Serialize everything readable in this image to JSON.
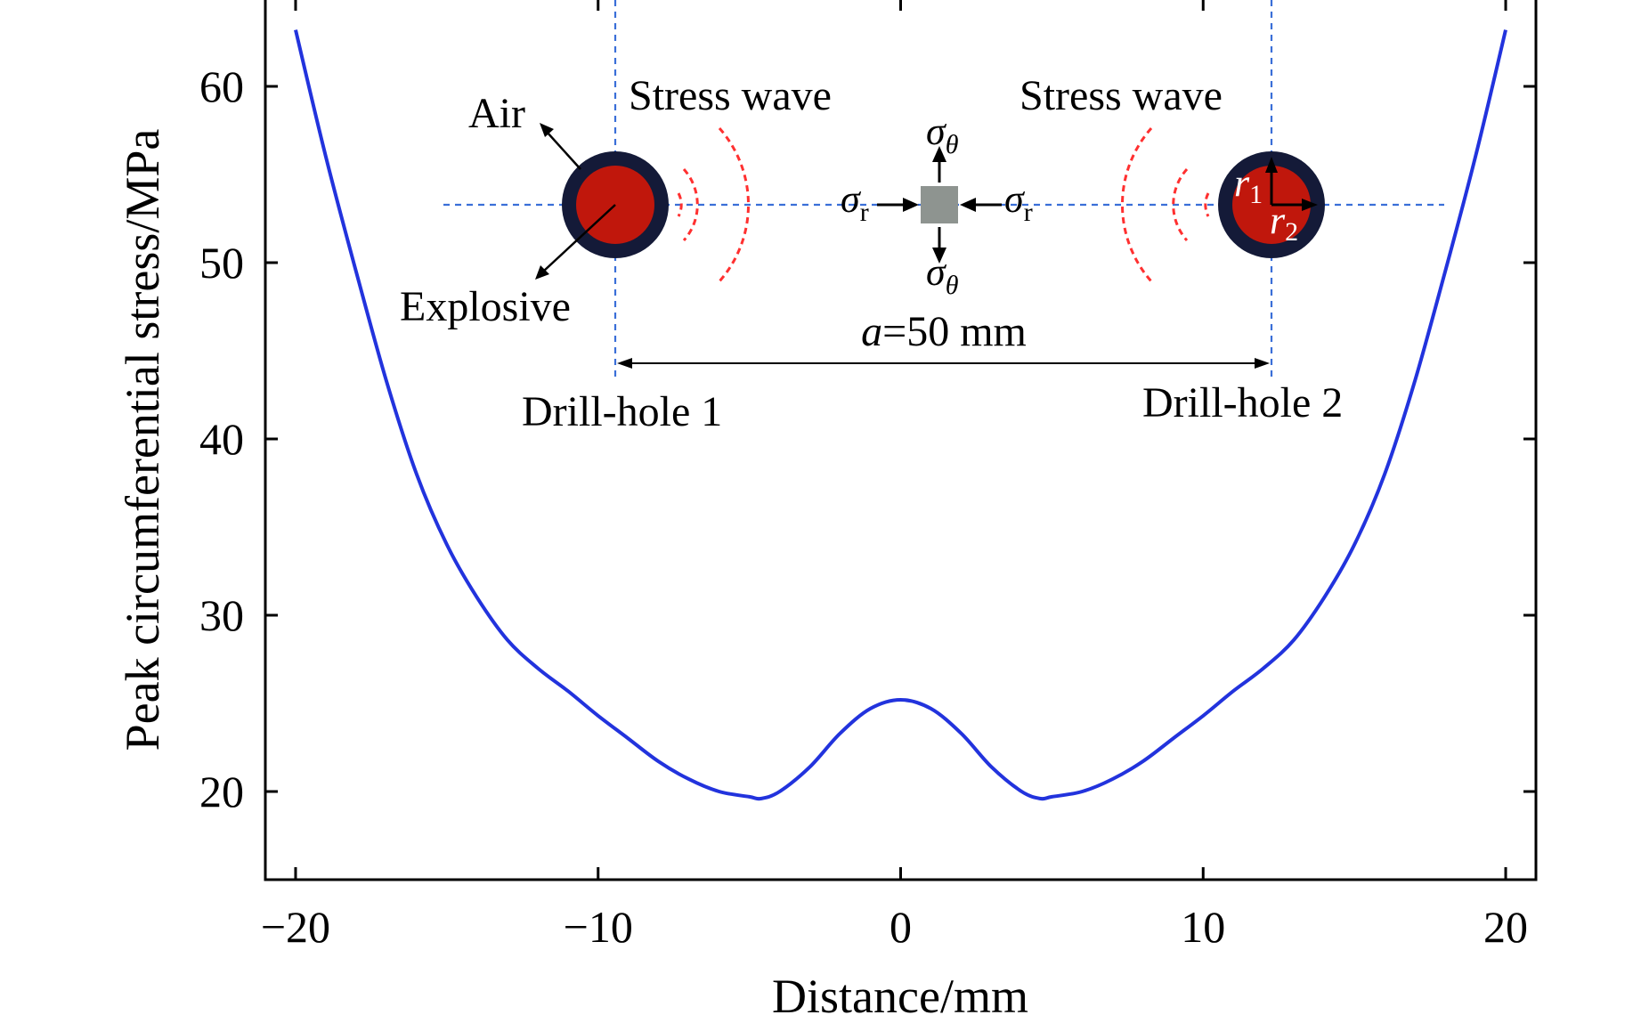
{
  "chart_data": {
    "type": "line",
    "xlabel": "Distance/mm",
    "ylabel": "Peak circumferential stress/MPa",
    "xlim": [
      -21,
      21
    ],
    "ylim": [
      15,
      65
    ],
    "xticks": [
      -20,
      -10,
      0,
      10,
      20
    ],
    "yticks": [
      20,
      30,
      40,
      50,
      60
    ],
    "xtick_labels": [
      "−20",
      "−10",
      "0",
      "10",
      "20"
    ],
    "ytick_labels": [
      "20",
      "30",
      "40",
      "50",
      "60"
    ],
    "grid": false,
    "series": [
      {
        "name": "Peak circumferential stress",
        "color": "#2233dd",
        "x": [
          -20,
          -19,
          -18,
          -17,
          -16,
          -15,
          -14,
          -13,
          -12,
          -11,
          -10,
          -9,
          -8,
          -7,
          -6,
          -5,
          -4.6,
          -4,
          -3,
          -2,
          -1,
          0,
          1,
          2,
          3,
          4,
          4.6,
          5,
          6,
          7,
          8,
          9,
          10,
          11,
          12,
          13,
          14,
          15,
          16,
          17,
          18,
          19,
          20
        ],
        "y": [
          63.2,
          56.0,
          49.5,
          43.3,
          38.0,
          34.0,
          31.0,
          28.6,
          27.0,
          25.7,
          24.3,
          23.0,
          21.7,
          20.7,
          20.0,
          19.7,
          19.6,
          20.0,
          21.4,
          23.3,
          24.7,
          25.2,
          24.7,
          23.3,
          21.4,
          20.0,
          19.6,
          19.7,
          20.0,
          20.7,
          21.7,
          23.0,
          24.3,
          25.7,
          27.0,
          28.6,
          31.0,
          34.0,
          38.0,
          43.3,
          49.5,
          56.0,
          63.2
        ]
      }
    ]
  },
  "inset": {
    "stress_wave_left": "Stress wave",
    "stress_wave_right": "Stress wave",
    "air": "Air",
    "explosive": "Explosive",
    "drill_hole_1": "Drill-hole 1",
    "drill_hole_2": "Drill-hole 2",
    "spacing_symbol": "a",
    "spacing_value": "=50 mm",
    "sigma": "σ",
    "sub_theta": "θ",
    "sub_r": "r",
    "radius_symbol": "r",
    "r_sub_1": "1",
    "r_sub_2": "2",
    "colors": {
      "explosive": "#c0170c",
      "air_ring": "#141a38",
      "wave": "#ff3030",
      "guide": "#3a6fd8",
      "element": "#8e9490"
    }
  }
}
